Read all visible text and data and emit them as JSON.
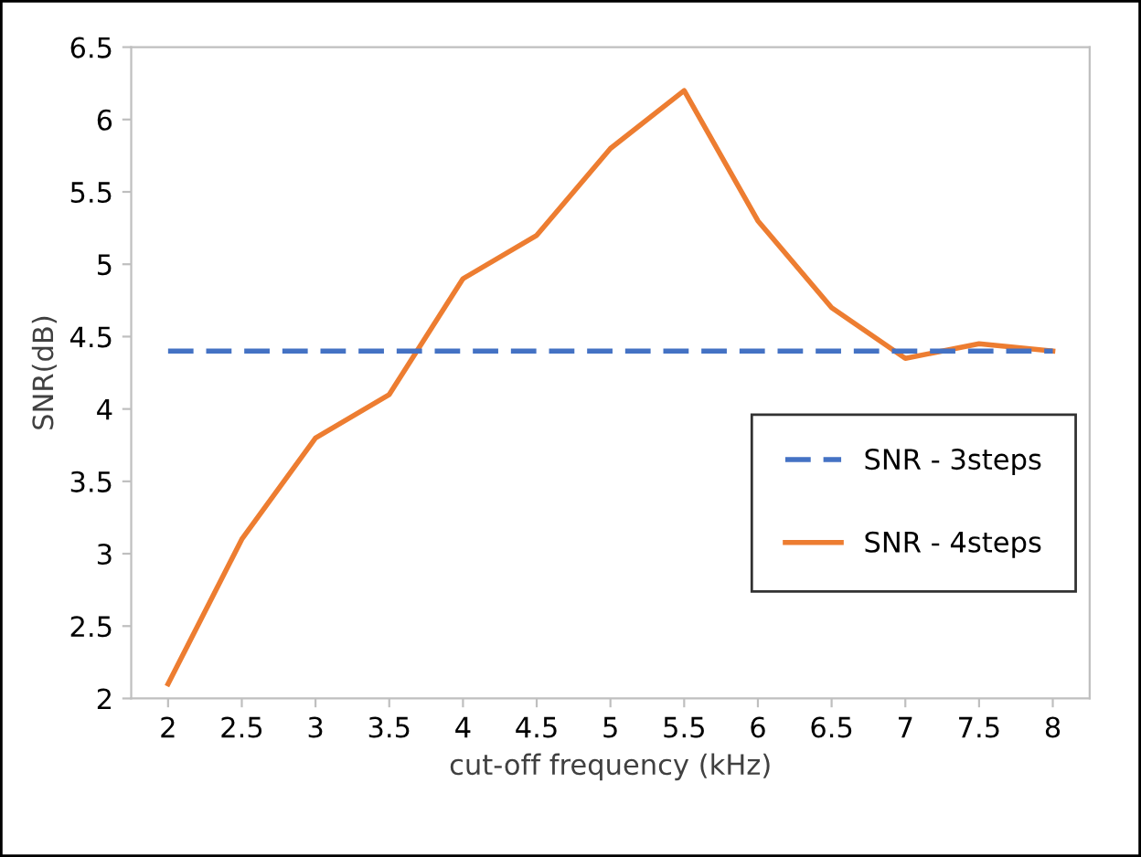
{
  "chart_data": {
    "type": "line",
    "xlabel": "cut-off frequency (kHz)",
    "ylabel": "SNR(dB)",
    "categories": [
      "2",
      "2.5",
      "3",
      "3.5",
      "4",
      "4.5",
      "5",
      "5.5",
      "6",
      "6.5",
      "7",
      "7.5",
      "8"
    ],
    "series": [
      {
        "name": "SNR - 3steps",
        "color": "#4472c4",
        "line_style": "dashed",
        "values": [
          4.4,
          4.4,
          4.4,
          4.4,
          4.4,
          4.4,
          4.4,
          4.4,
          4.4,
          4.4,
          4.4,
          4.4,
          4.4
        ]
      },
      {
        "name": "SNR - 4steps",
        "color": "#ed7d31",
        "line_style": "solid",
        "values": [
          2.1,
          3.1,
          3.8,
          4.1,
          4.9,
          5.2,
          5.8,
          6.2,
          5.3,
          4.7,
          4.35,
          4.45,
          4.4
        ]
      }
    ],
    "ylim": [
      2,
      6.5
    ],
    "yticks": [
      2,
      2.5,
      3,
      3.5,
      4,
      4.5,
      5,
      5.5,
      6,
      6.5
    ],
    "grid": false,
    "legend": "right",
    "marker": "none"
  }
}
